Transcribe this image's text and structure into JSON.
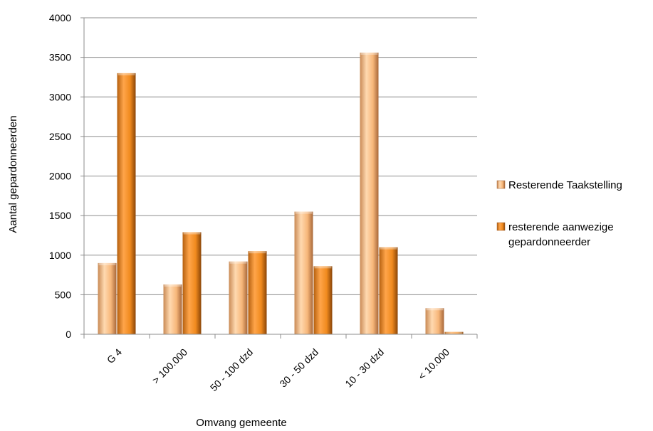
{
  "chart_data": {
    "type": "bar",
    "categories": [
      "G 4",
      "> 100.000",
      "50 - 100 dzd",
      "30 - 50 dzd",
      "10 - 30 dzd",
      "< 10.000"
    ],
    "series": [
      {
        "name": "Resterende Taakstelling",
        "values": [
          900,
          630,
          920,
          1550,
          3560,
          330
        ],
        "color": "#f7b77a"
      },
      {
        "name": "resterende aanwezige gepardonneerder",
        "values": [
          3300,
          1290,
          1050,
          860,
          1100,
          30
        ],
        "color": "#f08a1e"
      }
    ],
    "xlabel": "Omvang gemeente",
    "ylabel": "Aantal gepardonneerden",
    "ylim": [
      0,
      4000
    ],
    "yticks": [
      "0",
      "500",
      "1000",
      "1500",
      "2000",
      "2500",
      "3000",
      "3500",
      "4000"
    ],
    "grid": true,
    "legend": "right",
    "legend_lines": [
      [
        "Resterende Taakstelling"
      ],
      [
        "resterende aanwezige",
        "gepardonneerder"
      ]
    ]
  }
}
